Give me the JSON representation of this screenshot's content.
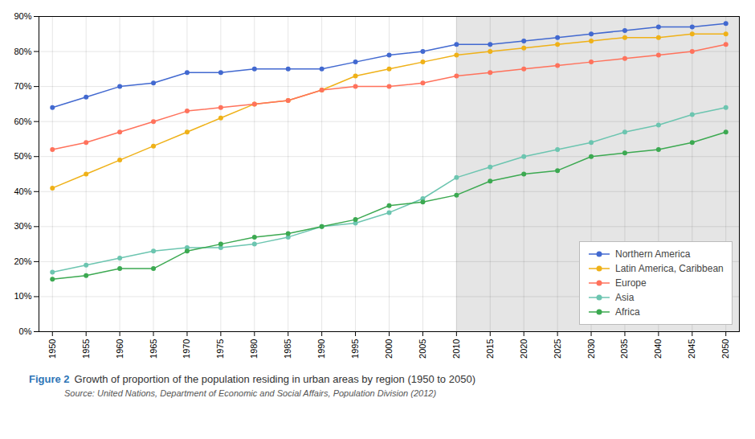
{
  "chart_data": {
    "type": "line",
    "caption_label": "Figure 2",
    "caption": "Growth of proportion of the population residing in urban areas by region (1950 to 2050)",
    "source": "Source: United Nations, Department of Economic and Social Affairs, Population Division (2012)",
    "x": [
      1950,
      1955,
      1960,
      1965,
      1970,
      1975,
      1980,
      1985,
      1990,
      1995,
      2000,
      2005,
      2010,
      2015,
      2020,
      2025,
      2030,
      2035,
      2040,
      2045,
      2050
    ],
    "series": [
      {
        "name": "Northern America",
        "values": [
          64,
          67,
          70,
          71,
          74,
          74,
          75,
          75,
          75,
          77,
          79,
          80,
          82,
          82,
          83,
          84,
          85,
          86,
          87,
          87,
          88
        ]
      },
      {
        "name": "Latin America, Caribbean",
        "values": [
          41,
          45,
          49,
          53,
          57,
          61,
          65,
          66,
          69,
          73,
          75,
          77,
          79,
          80,
          81,
          82,
          83,
          84,
          84,
          85,
          85
        ]
      },
      {
        "name": "Europe",
        "values": [
          52,
          54,
          57,
          60,
          63,
          64,
          65,
          66,
          69,
          70,
          70,
          71,
          73,
          74,
          75,
          76,
          77,
          78,
          79,
          80,
          82
        ]
      },
      {
        "name": "Asia",
        "values": [
          17,
          19,
          21,
          23,
          24,
          24,
          25,
          27,
          30,
          31,
          34,
          38,
          44,
          47,
          50,
          52,
          54,
          57,
          59,
          62,
          64
        ]
      },
      {
        "name": "Africa",
        "values": [
          15,
          16,
          18,
          18,
          23,
          25,
          27,
          28,
          30,
          32,
          36,
          37,
          39,
          43,
          45,
          46,
          50,
          51,
          52,
          54,
          57
        ]
      }
    ],
    "xlim": [
      1948,
      2052
    ],
    "xticks": [
      1950,
      1955,
      1960,
      1965,
      1970,
      1975,
      1980,
      1985,
      1990,
      1995,
      2000,
      2005,
      2010,
      2015,
      2020,
      2025,
      2030,
      2035,
      2040,
      2045,
      2050
    ],
    "ylim": [
      0,
      90
    ],
    "yticks": [
      {
        "value": 0,
        "label": "0%"
      },
      {
        "value": 10,
        "label": "10%"
      },
      {
        "value": 20,
        "label": "20%"
      },
      {
        "value": 30,
        "label": "30%"
      },
      {
        "value": 40,
        "label": "40%"
      },
      {
        "value": 50,
        "label": "50%"
      },
      {
        "value": 60,
        "label": "60%"
      },
      {
        "value": 70,
        "label": "70%"
      },
      {
        "value": 80,
        "label": "80%"
      },
      {
        "value": 90,
        "label": "90%"
      }
    ],
    "grid": true,
    "legend": "lower right",
    "marker": "circle",
    "shaded_x_range": [
      2010,
      2052
    ]
  }
}
